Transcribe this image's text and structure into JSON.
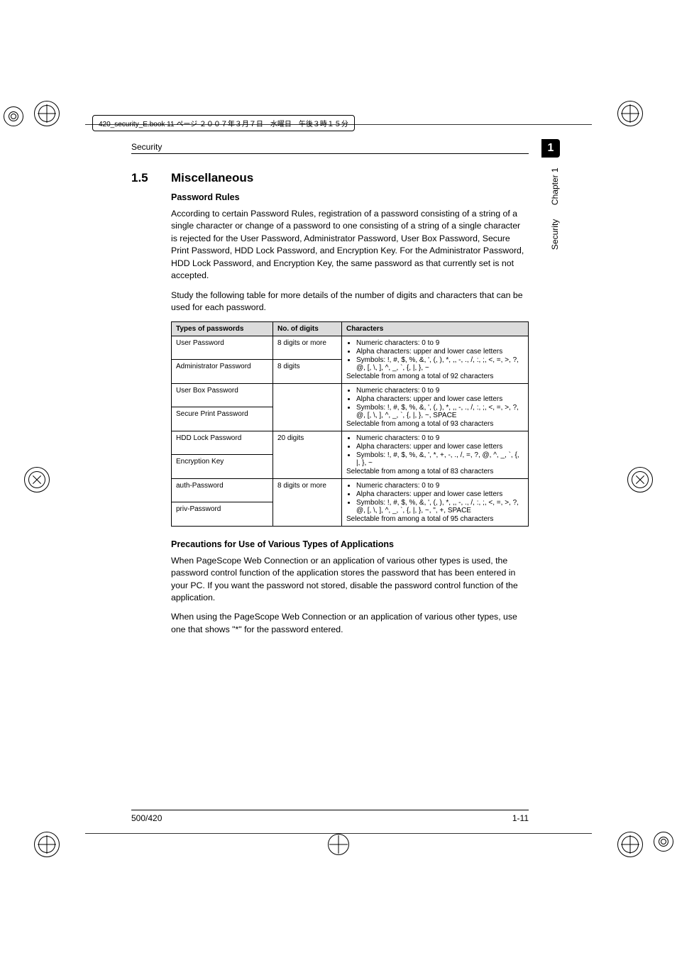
{
  "book_header": "420_security_E.book  11 ページ  ２００７年３月７日　水曜日　午後３時１５分",
  "running_head": "Security",
  "page_tab": "1",
  "side_chapter": "Chapter 1",
  "side_section": "Security",
  "section_number": "1.5",
  "section_title": "Miscellaneous",
  "sub1": "Password Rules",
  "para1": "According to certain Password Rules, registration of a password consisting of a string of a single character or change of a password to one consisting of a string of a single character is rejected for the User Password, Administrator Password, User Box Password, Secure Print Password, HDD Lock Password, and Encryption Key. For the Administrator Password, HDD Lock Password, and Encryption Key, the same password as that currently set is not accepted.",
  "para2": "Study the following table for more details of the number of digits and characters that can be used for each password.",
  "table": {
    "headers": [
      "Types of passwords",
      "No. of digits",
      "Characters"
    ],
    "groups": [
      {
        "rows": [
          {
            "type": "User Password",
            "digits": "8 digits or more"
          },
          {
            "type": "Administrator Password",
            "digits": "8 digits"
          }
        ],
        "chars": {
          "bullets": [
            "Numeric characters: 0 to 9",
            "Alpha characters: upper and lower case letters",
            "Symbols: !, #, $, %, &, ', (, ), *, ,, -, ., /, :, ;, <, =, >, ?, @, [, \\, ], ^, _, `, {, |, }, ~"
          ],
          "tail": "Selectable from among a total of 92 characters"
        }
      },
      {
        "rows": [
          {
            "type": "User Box Password",
            "digits": ""
          },
          {
            "type": "Secure Print Password",
            "digits": ""
          }
        ],
        "chars": {
          "bullets": [
            "Numeric characters: 0 to 9",
            "Alpha characters: upper and lower case letters",
            "Symbols: !, #, $, %, &, ', (, ), *, ,, -, ., /, :, ;, <, =, >, ?, @, [, \\, ], ^, _, `, {, |, }, ~, SPACE"
          ],
          "tail": "Selectable from among a total of 93 characters"
        }
      },
      {
        "rows": [
          {
            "type": "HDD Lock Password",
            "digits": "20 digits"
          },
          {
            "type": "Encryption Key",
            "digits": ""
          }
        ],
        "chars": {
          "bullets": [
            "Numeric characters: 0 to 9",
            "Alpha characters: upper and lower case letters",
            "Symbols: !, #, $, %, &, ', *, +, -, ., /, =, ?, @, ^, _, `, {, |, }, ~"
          ],
          "tail": "Selectable from among a total of 83 characters"
        }
      },
      {
        "rows": [
          {
            "type": "auth-Password",
            "digits": "8 digits or more"
          },
          {
            "type": "priv-Password",
            "digits": ""
          }
        ],
        "chars": {
          "bullets": [
            "Numeric characters: 0 to 9",
            "Alpha characters: upper and lower case letters",
            "Symbols: !, #, $, %, &, ', (, ), *, ,, -, ., /, :, ;, <, =, >, ?, @, [, \\, ], ^, _, `, {, |, }, ~, \", +, SPACE"
          ],
          "tail": "Selectable from among a total of 95 characters"
        }
      }
    ]
  },
  "sub2": "Precautions for Use of Various Types of Applications",
  "para3": "When PageScope Web Connection or an application of various other types is used, the password control function of the application stores the password that has been entered in your PC. If you want the password not stored, disable the password control function of the application.",
  "para4": "When using the PageScope Web Connection or an application of various other types, use one that shows \"*\" for the password entered.",
  "footer_left": "500/420",
  "footer_right": "1-11"
}
